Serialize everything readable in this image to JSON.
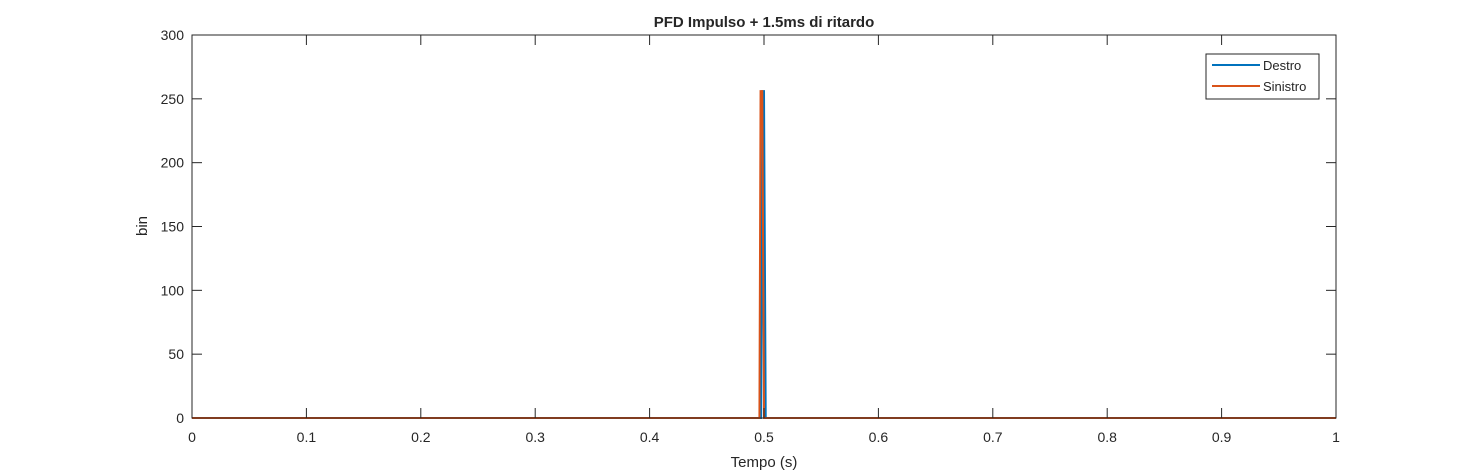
{
  "chart_data": {
    "type": "line",
    "title": "PFD Impulso + 1.5ms di ritardo",
    "xlabel": "Tempo (s)",
    "ylabel": "bin",
    "xlim": [
      0,
      1
    ],
    "ylim": [
      0,
      300
    ],
    "xticks": [
      "0",
      "0.1",
      "0.2",
      "0.3",
      "0.4",
      "0.5",
      "0.6",
      "0.7",
      "0.8",
      "0.9",
      "1"
    ],
    "xtick_values": [
      0,
      0.1,
      0.2,
      0.3,
      0.4,
      0.5,
      0.6,
      0.7,
      0.8,
      0.9,
      1
    ],
    "yticks": [
      "0",
      "50",
      "100",
      "150",
      "200",
      "250",
      "300"
    ],
    "ytick_values": [
      0,
      50,
      100,
      150,
      200,
      250,
      300
    ],
    "grid": false,
    "legend_position": "top-right",
    "series": [
      {
        "name": "Destro",
        "color": "#0072BD",
        "x": [
          0,
          0.4975,
          0.4985,
          0.5,
          0.5015,
          1
        ],
        "y": [
          0,
          0,
          256,
          256,
          0,
          0
        ]
      },
      {
        "name": "Sinistro",
        "color": "#D95319",
        "x": [
          0,
          0.496,
          0.497,
          0.4985,
          0.5,
          1
        ],
        "y": [
          0,
          0,
          256,
          256,
          0,
          0
        ]
      }
    ]
  }
}
